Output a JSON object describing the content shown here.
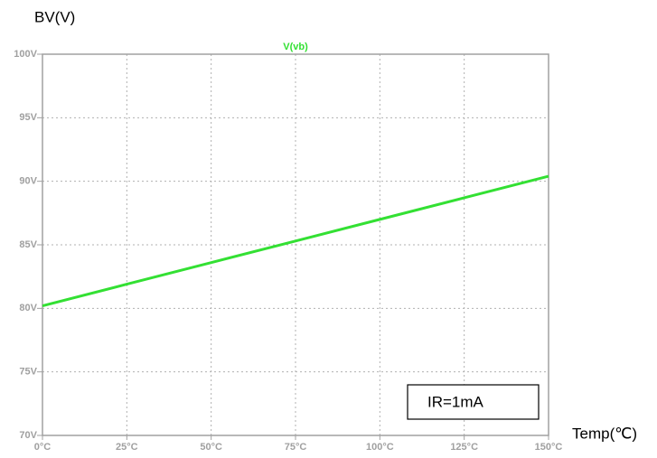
{
  "chart_data": {
    "type": "line",
    "y_label": "BV(V)",
    "x_label": "Temp(℃)",
    "annotation": "IR=1mA",
    "x": [
      0,
      25,
      50,
      75,
      100,
      125,
      150
    ],
    "series": [
      {
        "name": "V(vb)",
        "color": "#33e033",
        "values": [
          80.2,
          81.9,
          83.6,
          85.3,
          87.0,
          88.7,
          90.4
        ]
      }
    ],
    "xlim": [
      0,
      150
    ],
    "xticks": [
      {
        "value": 0,
        "label": "0°C"
      },
      {
        "value": 25,
        "label": "25°C"
      },
      {
        "value": 50,
        "label": "50°C"
      },
      {
        "value": 75,
        "label": "75°C"
      },
      {
        "value": 100,
        "label": "100°C"
      },
      {
        "value": 125,
        "label": "125°C"
      },
      {
        "value": 150,
        "label": "150°C"
      }
    ],
    "ylim": [
      70,
      100
    ],
    "yticks": [
      {
        "value": 70,
        "label": "70V"
      },
      {
        "value": 75,
        "label": "75V"
      },
      {
        "value": 80,
        "label": "80V"
      },
      {
        "value": 85,
        "label": "85V"
      },
      {
        "value": 90,
        "label": "90V"
      },
      {
        "value": 95,
        "label": "95V"
      },
      {
        "value": 100,
        "label": "100V"
      }
    ],
    "grid": true
  }
}
